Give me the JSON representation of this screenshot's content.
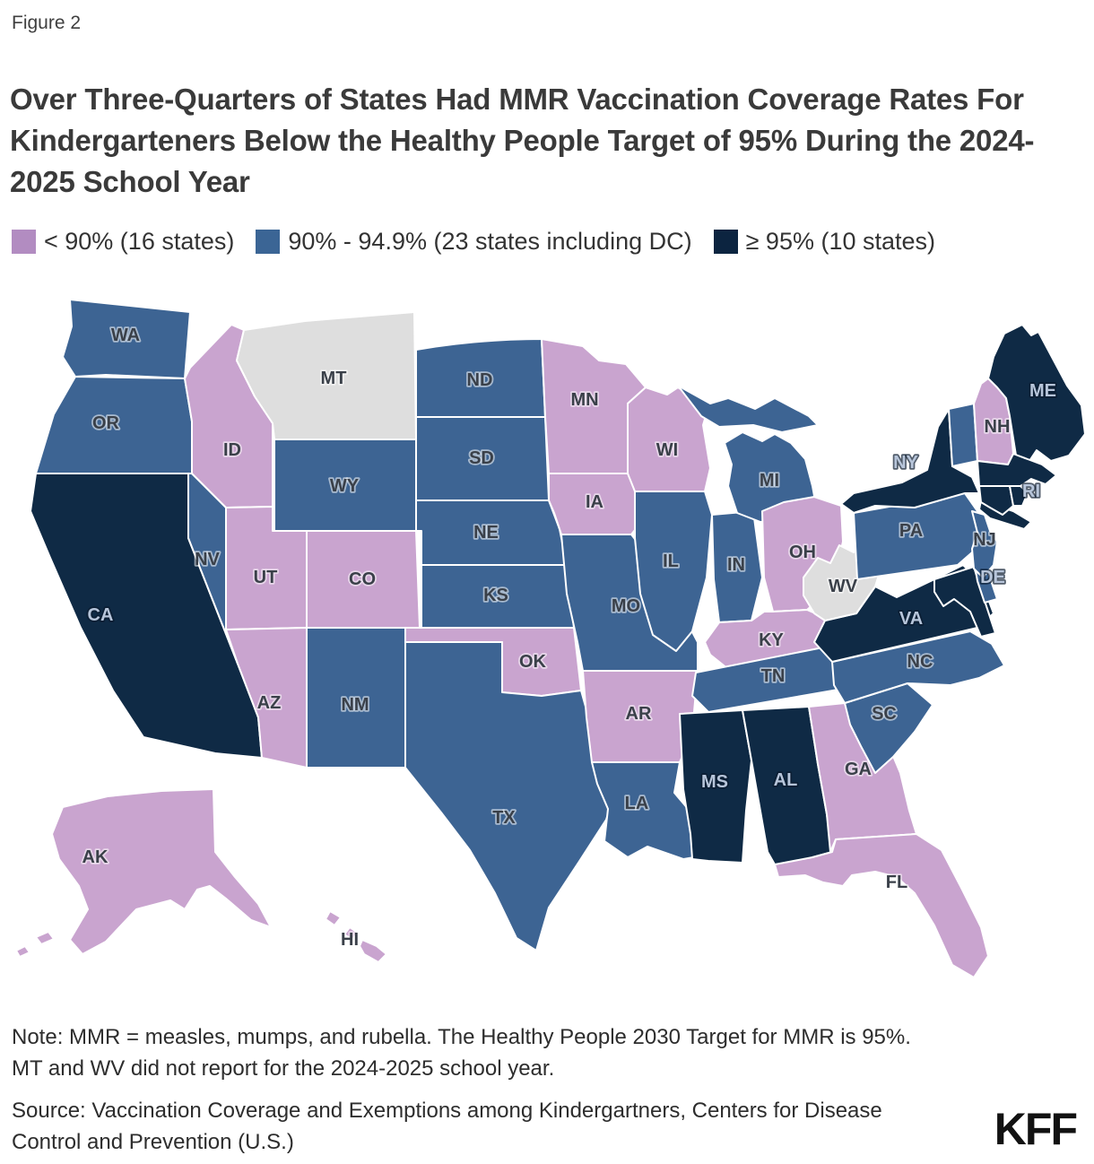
{
  "figure_label": "Figure 2",
  "title": "Over Three-Quarters of States Had MMR Vaccination Coverage Rates For Kindergarteners Below the Healthy People Target of 95% During the 2024-2025 School Year",
  "legend": {
    "items": [
      {
        "key": "lt90",
        "label": "< 90% (16 states)",
        "swatch": "#b28cc1",
        "fill": "#c9a4cf"
      },
      {
        "key": "mid",
        "label": "90% - 94.9% (23 states including DC)",
        "swatch": "#3b6595",
        "fill": "#3d6493"
      },
      {
        "key": "gte95",
        "label": "≥ 95% (10 states)",
        "swatch": "#0c2440",
        "fill": "#0f2a45"
      }
    ],
    "no_data_fill": "#dedede"
  },
  "map": {
    "states": [
      {
        "id": "WA",
        "label": "WA",
        "category": "mid"
      },
      {
        "id": "OR",
        "label": "OR",
        "category": "mid"
      },
      {
        "id": "CA",
        "label": "CA",
        "category": "gte95",
        "label_style": "light"
      },
      {
        "id": "NV",
        "label": "NV",
        "category": "mid"
      },
      {
        "id": "ID",
        "label": "ID",
        "category": "lt90"
      },
      {
        "id": "MT",
        "label": "MT",
        "category": "nodata"
      },
      {
        "id": "WY",
        "label": "WY",
        "category": "mid"
      },
      {
        "id": "UT",
        "label": "UT",
        "category": "lt90"
      },
      {
        "id": "CO",
        "label": "CO",
        "category": "lt90"
      },
      {
        "id": "AZ",
        "label": "AZ",
        "category": "lt90"
      },
      {
        "id": "NM",
        "label": "NM",
        "category": "mid"
      },
      {
        "id": "ND",
        "label": "ND",
        "category": "mid"
      },
      {
        "id": "SD",
        "label": "SD",
        "category": "mid"
      },
      {
        "id": "NE",
        "label": "NE",
        "category": "mid"
      },
      {
        "id": "KS",
        "label": "KS",
        "category": "mid"
      },
      {
        "id": "OK",
        "label": "OK",
        "category": "lt90"
      },
      {
        "id": "TX",
        "label": "TX",
        "category": "mid"
      },
      {
        "id": "MN",
        "label": "MN",
        "category": "lt90"
      },
      {
        "id": "IA",
        "label": "IA",
        "category": "lt90"
      },
      {
        "id": "MO",
        "label": "MO",
        "category": "mid"
      },
      {
        "id": "AR",
        "label": "AR",
        "category": "lt90"
      },
      {
        "id": "LA",
        "label": "LA",
        "category": "mid"
      },
      {
        "id": "WI",
        "label": "WI",
        "category": "lt90"
      },
      {
        "id": "IL",
        "label": "IL",
        "category": "mid"
      },
      {
        "id": "IN",
        "label": "IN",
        "category": "mid"
      },
      {
        "id": "MI",
        "label": "MI",
        "category": "mid"
      },
      {
        "id": "OH",
        "label": "OH",
        "category": "lt90"
      },
      {
        "id": "KY",
        "label": "KY",
        "category": "lt90"
      },
      {
        "id": "TN",
        "label": "TN",
        "category": "mid"
      },
      {
        "id": "MS",
        "label": "MS",
        "category": "gte95",
        "label_style": "light"
      },
      {
        "id": "AL",
        "label": "AL",
        "category": "gte95",
        "label_style": "light"
      },
      {
        "id": "GA",
        "label": "GA",
        "category": "lt90"
      },
      {
        "id": "FL",
        "label": "FL",
        "category": "lt90"
      },
      {
        "id": "SC",
        "label": "SC",
        "category": "mid"
      },
      {
        "id": "NC",
        "label": "NC",
        "category": "mid"
      },
      {
        "id": "VA",
        "label": "VA",
        "category": "gte95",
        "label_style": "light"
      },
      {
        "id": "WV",
        "label": "WV",
        "category": "nodata"
      },
      {
        "id": "PA",
        "label": "PA",
        "category": "mid"
      },
      {
        "id": "MD",
        "label": "",
        "category": "gte95"
      },
      {
        "id": "DE",
        "label": "DE",
        "category": "mid",
        "label_style": "light"
      },
      {
        "id": "NJ",
        "label": "NJ",
        "category": "mid"
      },
      {
        "id": "NY",
        "label": "NY",
        "category": "gte95",
        "label_style": "light"
      },
      {
        "id": "VT",
        "label": "",
        "category": "mid"
      },
      {
        "id": "NH",
        "label": "NH",
        "category": "lt90"
      },
      {
        "id": "ME",
        "label": "ME",
        "category": "gte95",
        "label_style": "light"
      },
      {
        "id": "MA",
        "label": "",
        "category": "gte95"
      },
      {
        "id": "CT",
        "label": "",
        "category": "gte95"
      },
      {
        "id": "RI",
        "label": "RI",
        "category": "gte95",
        "label_style": "light"
      },
      {
        "id": "AK",
        "label": "AK",
        "category": "lt90"
      },
      {
        "id": "HI",
        "label": "HI",
        "category": "lt90"
      }
    ]
  },
  "note": "Note: MMR = measles, mumps, and rubella. The Healthy People 2030 Target for MMR is 95%.\nMT and WV did not report for the 2024-2025 school year.",
  "source": "Source: Vaccination Coverage and Exemptions among Kindergartners, Centers for Disease\nControl and Prevention (U.S.)",
  "logo": "KFF",
  "chart_data": {
    "type": "choropleth",
    "title": "Over Three-Quarters of States Had MMR Vaccination Coverage Rates For Kindergarteners Below the Healthy People Target of 95% During the 2024-2025 School Year",
    "measure": "MMR vaccination coverage rate among kindergarteners, 2024-2025 school year",
    "legend_position": "top",
    "bins": [
      {
        "label": "< 90% (16 states)",
        "color": "#b28cc1",
        "states": [
          "AK",
          "AZ",
          "AR",
          "CO",
          "FL",
          "GA",
          "HI",
          "ID",
          "IA",
          "KY",
          "MN",
          "NH",
          "OH",
          "OK",
          "UT",
          "WI"
        ]
      },
      {
        "label": "90% - 94.9% (23 states including DC)",
        "color": "#3b6595",
        "states": [
          "DC",
          "DE",
          "IL",
          "IN",
          "KS",
          "LA",
          "MI",
          "MO",
          "NE",
          "NV",
          "NJ",
          "NM",
          "NC",
          "ND",
          "OR",
          "PA",
          "SC",
          "SD",
          "TN",
          "TX",
          "VT",
          "WA",
          "WY"
        ]
      },
      {
        "label": "≥ 95% (10 states)",
        "color": "#0c2440",
        "states": [
          "AL",
          "CA",
          "CT",
          "ME",
          "MD",
          "MA",
          "MS",
          "NY",
          "RI",
          "VA"
        ]
      },
      {
        "label": "Did not report",
        "color": "#dedede",
        "states": [
          "MT",
          "WV"
        ]
      }
    ]
  }
}
